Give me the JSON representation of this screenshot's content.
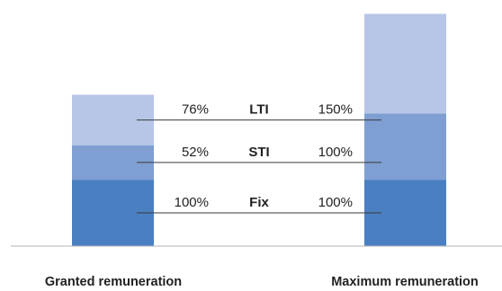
{
  "chart_data": {
    "type": "bar",
    "stacked": true,
    "title": "",
    "xlabel": "",
    "ylabel": "",
    "categories": [
      "Granted remuneration",
      "Maximum remuneration"
    ],
    "series": [
      {
        "name": "Fix",
        "values": [
          100,
          100
        ],
        "labels": [
          "100%",
          "100%"
        ],
        "color": "#4a7fc1"
      },
      {
        "name": "STI",
        "values": [
          52,
          100
        ],
        "labels": [
          "52%",
          "100%"
        ],
        "color": "#7f9fd3"
      },
      {
        "name": "LTI",
        "values": [
          76,
          150
        ],
        "labels": [
          "76%",
          "150%"
        ],
        "color": "#b7c6e6"
      }
    ],
    "ylim": [
      0,
      360
    ],
    "grid": false,
    "legend": "none"
  }
}
